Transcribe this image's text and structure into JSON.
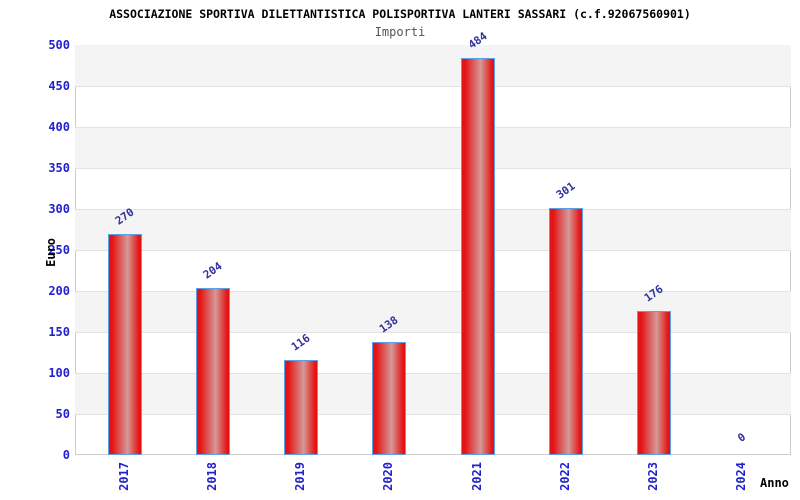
{
  "chart_data": {
    "type": "bar",
    "title": "ASSOCIAZIONE SPORTIVA DILETTANTISTICA POLISPORTIVA LANTERI SASSARI (c.f.92067560901)",
    "subtitle": "Importi",
    "xlabel": "Anno",
    "ylabel": "Euro",
    "categories": [
      "2017",
      "2018",
      "2019",
      "2020",
      "2021",
      "2022",
      "2023",
      "2024"
    ],
    "values": [
      270,
      204,
      116,
      138,
      484,
      301,
      176,
      0
    ],
    "yticks": [
      0,
      50,
      100,
      150,
      200,
      250,
      300,
      350,
      400,
      450,
      500
    ],
    "ylim": [
      0,
      500
    ],
    "grid": "horizontal lines with alternating gray bands",
    "legend": "none",
    "colors": {
      "bar_edge": "#e41414",
      "bar_center_highlight": "#d49a98",
      "bar_border": "#5b9fe8",
      "tick_label": "#2222cc",
      "value_label": "#32329b",
      "band": "#f4f4f4",
      "gridline": "#e2e2e2",
      "subtitle_text": "#555555"
    }
  }
}
